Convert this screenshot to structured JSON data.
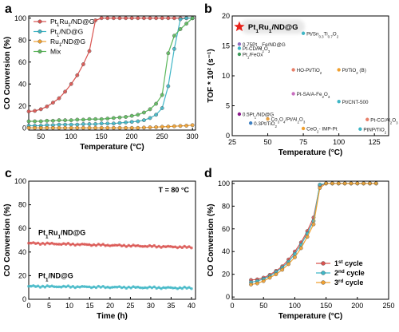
{
  "colors": {
    "red": "#d9534f",
    "cyan": "#3fb6c6",
    "orange": "#f0a030",
    "green": "#5cb85c",
    "axis": "#000000",
    "badge": "#e8e8e8",
    "star": "#e8231b"
  },
  "chart_data": [
    {
      "panel": "a",
      "type": "line",
      "xlabel": "Temperature (°C)",
      "ylabel": "CO Conversion (%)",
      "xlim": [
        30,
        305
      ],
      "ylim": [
        -2,
        102
      ],
      "xticks": [
        50,
        100,
        150,
        200,
        250,
        300
      ],
      "yticks": [
        0,
        20,
        40,
        60,
        80,
        100
      ],
      "legend_position": "top-left",
      "series": [
        {
          "name": "Pt1Ru1/ND@G",
          "color": "#d9534f",
          "x": [
            30,
            40,
            50,
            60,
            70,
            80,
            90,
            100,
            110,
            120,
            130,
            140,
            150,
            160,
            170,
            180,
            190,
            200,
            210,
            220,
            230,
            240,
            250,
            260,
            270,
            280,
            290,
            300
          ],
          "y": [
            15,
            15.5,
            17,
            19.5,
            23,
            27,
            33,
            40,
            48,
            58,
            70,
            98,
            100,
            100,
            100,
            100,
            100,
            100,
            100,
            100,
            100,
            100,
            100,
            100,
            100,
            100,
            100,
            100
          ]
        },
        {
          "name": "Pt1/ND@G",
          "color": "#3fb6c6",
          "x": [
            30,
            40,
            50,
            60,
            70,
            80,
            90,
            100,
            110,
            120,
            130,
            140,
            150,
            160,
            170,
            180,
            190,
            200,
            210,
            220,
            230,
            240,
            250,
            260,
            270,
            280,
            290,
            300
          ],
          "y": [
            2,
            2,
            2,
            2.5,
            2.5,
            3,
            3,
            3,
            3,
            3.5,
            3.5,
            3.5,
            4,
            4,
            4,
            4.5,
            5,
            5.5,
            6,
            7,
            9,
            12,
            18,
            38,
            72,
            99,
            100,
            100
          ]
        },
        {
          "name": "Ru1/ND@G",
          "color": "#f0a030",
          "x": [
            30,
            40,
            50,
            60,
            70,
            80,
            90,
            100,
            110,
            120,
            130,
            140,
            150,
            160,
            170,
            180,
            190,
            200,
            210,
            220,
            230,
            240,
            250,
            260,
            270,
            280,
            290,
            300
          ],
          "y": [
            0,
            0,
            0,
            0,
            0,
            0,
            0,
            0,
            0,
            0,
            0,
            0,
            0,
            0,
            0,
            0,
            0,
            0,
            0,
            0.3,
            0.5,
            0.7,
            1,
            1.2,
            1.5,
            1.8,
            2,
            2.5
          ]
        },
        {
          "name": "Mix",
          "color": "#5cb85c",
          "x": [
            30,
            40,
            50,
            60,
            70,
            80,
            90,
            100,
            110,
            120,
            130,
            140,
            150,
            160,
            170,
            180,
            190,
            200,
            210,
            220,
            230,
            240,
            250,
            260,
            270,
            280,
            290,
            300
          ],
          "y": [
            6,
            6,
            6,
            6.5,
            6.5,
            7,
            7,
            7,
            7.5,
            7.5,
            8,
            8,
            8,
            8.5,
            9,
            9.5,
            10,
            11,
            12,
            14,
            17,
            22,
            30,
            68,
            84,
            90,
            95,
            100
          ]
        }
      ]
    },
    {
      "panel": "b",
      "type": "scatter",
      "xlabel": "Temperature (°C)",
      "ylabel": "TOF * 10² (s⁻¹)",
      "xlim": [
        25,
        135
      ],
      "ylim": [
        0,
        20
      ],
      "xticks": [
        25,
        50,
        75,
        100,
        125
      ],
      "yticks": [
        0,
        5,
        10,
        15,
        20
      ],
      "highlight": {
        "label": "Pt1Ru1/ND@G",
        "x": 30,
        "y": 18.2
      },
      "points": [
        {
          "label": "0.75Pt0.2Fe/ND@G",
          "x": 30,
          "y": 15.3,
          "color": "#8e6cc1"
        },
        {
          "label": "Pt-CD/Al2O3",
          "x": 30,
          "y": 14.6,
          "color": "#3fb6c6"
        },
        {
          "label": "Pt1/FeOx",
          "x": 30,
          "y": 13.6,
          "color": "#3d9a59"
        },
        {
          "label": "Pt/Sn0.3Ti0.7O2",
          "x": 75,
          "y": 17.1,
          "color": "#3fb6c6"
        },
        {
          "label": "HO-Pt/TiO2",
          "x": 68,
          "y": 11.0,
          "color": "#e8806a"
        },
        {
          "label": "Pt/TiO2 (B)",
          "x": 100,
          "y": 11.0,
          "color": "#f0a030"
        },
        {
          "label": "Pt-SA/A-Fe2O3",
          "x": 68,
          "y": 7.0,
          "color": "#c86fc0"
        },
        {
          "label": "Pt/CNT-500",
          "x": 100,
          "y": 5.7,
          "color": "#3fb6c6"
        },
        {
          "label": "0.5Pt1/ND@G",
          "x": 30,
          "y": 3.6,
          "color": "#8b1a8b"
        },
        {
          "label": "Co3O4/Pt/Al2O3",
          "x": 50,
          "y": 2.8,
          "color": "#e8a040"
        },
        {
          "label": "0.3Pt/TiO2",
          "x": 38,
          "y": 2.1,
          "color": "#3d7fc1"
        },
        {
          "label": "CeO2- IMP-Pt",
          "x": 75,
          "y": 1.2,
          "color": "#f0a030"
        },
        {
          "label": "Pt-CC/Al2O3",
          "x": 120,
          "y": 2.7,
          "color": "#e8806a"
        },
        {
          "label": "PtNP/TiO2",
          "x": 115,
          "y": 1.1,
          "color": "#3fb6c6"
        }
      ]
    },
    {
      "panel": "c",
      "type": "line",
      "xlabel": "Time (h)",
      "ylabel": "CO Conversion (%)",
      "xlim": [
        0,
        41
      ],
      "ylim": [
        0,
        100
      ],
      "xticks": [
        0,
        5,
        10,
        15,
        20,
        25,
        30,
        35,
        40
      ],
      "yticks": [
        0,
        20,
        40,
        60,
        80,
        100
      ],
      "annotation": "T = 80 °C",
      "series": [
        {
          "name": "Pt1Ru1/ND@G",
          "color": "#d9534f",
          "start": 47.5,
          "end": 44.0
        },
        {
          "name": "Pt1/ND@G",
          "color": "#3fb6c6",
          "start": 11.0,
          "end": 9.5
        }
      ]
    },
    {
      "panel": "d",
      "type": "line",
      "xlabel": "Temperature (°C)",
      "ylabel": "CO Conversion (%)",
      "xlim": [
        0,
        250
      ],
      "ylim": [
        -2,
        102
      ],
      "xticks": [
        0,
        50,
        100,
        150,
        200,
        250
      ],
      "yticks": [
        0,
        20,
        40,
        60,
        80,
        100
      ],
      "legend_position": "bottom-right",
      "series": [
        {
          "name": "1st cycle",
          "color": "#d9534f",
          "x": [
            30,
            40,
            50,
            60,
            70,
            80,
            90,
            100,
            110,
            120,
            130,
            140,
            150,
            160,
            170,
            180,
            190,
            200,
            210,
            220,
            230
          ],
          "y": [
            15,
            15.5,
            17,
            19.5,
            23,
            27,
            33,
            40,
            48,
            58,
            70,
            98,
            100,
            100,
            100,
            100,
            100,
            100,
            100,
            100,
            100
          ]
        },
        {
          "name": "2nd cycle",
          "color": "#3fb6c6",
          "x": [
            30,
            40,
            50,
            60,
            70,
            80,
            90,
            100,
            110,
            120,
            130,
            140,
            150,
            160,
            170,
            180,
            190,
            200,
            210,
            220,
            230
          ],
          "y": [
            13,
            14,
            16,
            18.5,
            22,
            26,
            31,
            38,
            46,
            56,
            67,
            99,
            100,
            100,
            100,
            100,
            100,
            100,
            100,
            100,
            100
          ]
        },
        {
          "name": "3rd cycle",
          "color": "#f0a030",
          "x": [
            30,
            40,
            50,
            60,
            70,
            80,
            90,
            100,
            110,
            120,
            130,
            140,
            150,
            160,
            170,
            180,
            190,
            200,
            210,
            220,
            230
          ],
          "y": [
            11,
            12,
            14,
            17,
            20,
            24,
            29,
            35,
            43,
            53,
            64,
            96,
            100,
            100,
            100,
            100,
            100,
            100,
            100,
            100,
            100
          ]
        }
      ]
    }
  ]
}
